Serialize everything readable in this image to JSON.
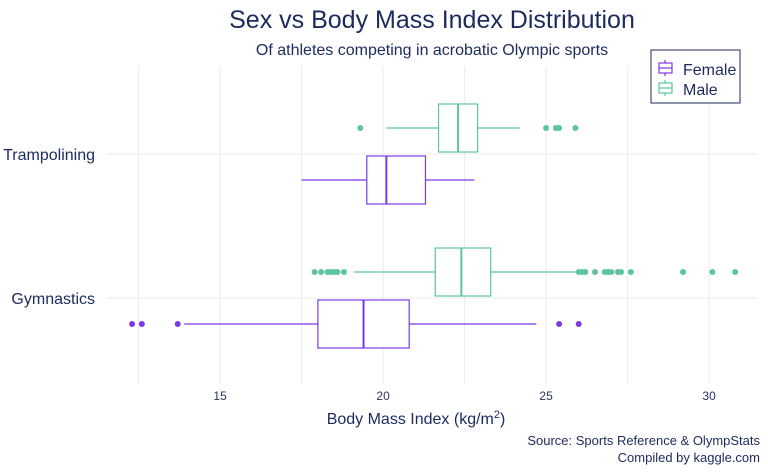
{
  "colors": {
    "Female": "#7b39e6",
    "Male": "#5cc4a2",
    "text": "#1c2a5e"
  },
  "chart_data": {
    "type": "boxplot",
    "title": "Sex vs Body Mass Index Distribution",
    "subtitle": "Of athletes competing in acrobatic Olympic sports",
    "xlabel_main": "Body Mass Index (kg/m",
    "xlabel_sup": "2",
    "xlabel_end": ")",
    "xlim": [
      11.5,
      31.5
    ],
    "xticks": [
      15,
      20,
      25,
      30
    ],
    "xtick_labels": [
      "15",
      "20",
      "25",
      "30"
    ],
    "grid": true,
    "legend_position": "top-right",
    "categories": [
      "Trampolining",
      "Gymnastics"
    ],
    "series_names": [
      "Female",
      "Male"
    ],
    "boxes": [
      {
        "category": "Trampolining",
        "sex": "Male",
        "whisker_low": 20.1,
        "q1": 21.7,
        "median": 22.3,
        "q3": 22.9,
        "whisker_high": 24.2,
        "outliers": [
          19.3,
          25.0,
          25.3,
          25.4,
          25.9
        ]
      },
      {
        "category": "Trampolining",
        "sex": "Female",
        "whisker_low": 17.5,
        "q1": 19.5,
        "median": 20.1,
        "q3": 21.3,
        "whisker_high": 22.8,
        "outliers": []
      },
      {
        "category": "Gymnastics",
        "sex": "Male",
        "whisker_low": 19.1,
        "q1": 21.6,
        "median": 22.4,
        "q3": 23.3,
        "whisker_high": 26.0,
        "outliers": [
          17.9,
          18.1,
          18.3,
          18.4,
          18.5,
          18.6,
          18.8,
          26.0,
          26.1,
          26.2,
          26.5,
          26.8,
          26.9,
          27.0,
          27.2,
          27.3,
          27.6,
          29.2,
          30.1,
          30.8
        ]
      },
      {
        "category": "Gymnastics",
        "sex": "Female",
        "whisker_low": 13.9,
        "q1": 18.0,
        "median": 19.4,
        "q3": 20.8,
        "whisker_high": 24.7,
        "outliers": [
          12.3,
          12.6,
          13.7,
          25.4,
          26.0
        ]
      }
    ]
  },
  "caption": {
    "line1": "Source: Sports Reference & OlympStats",
    "line2": "Compiled by kaggle.com"
  }
}
